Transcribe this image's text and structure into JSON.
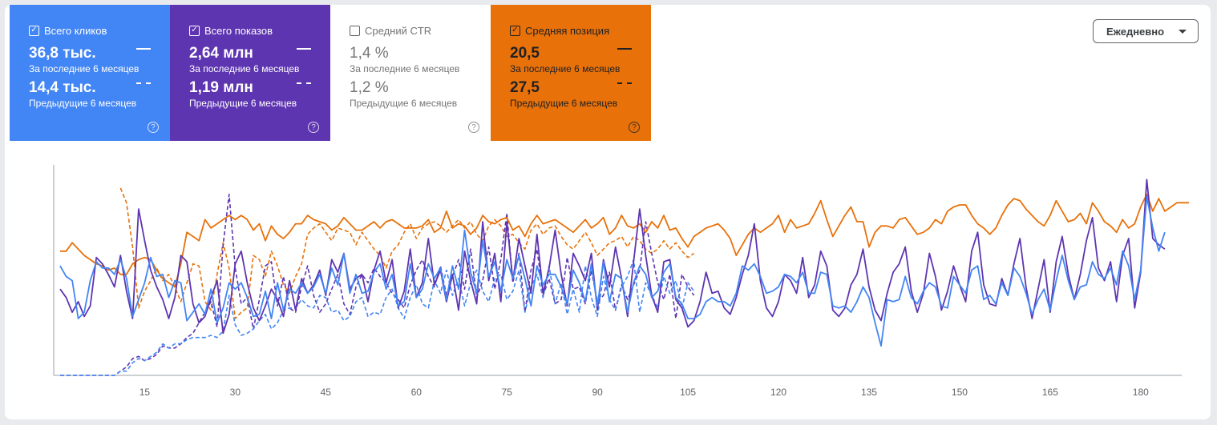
{
  "cards": [
    {
      "label": "Всего кликов",
      "checked": true,
      "current_value": "36,8 тыс.",
      "current_period": "За последние 6 месяцев",
      "previous_value": "14,4 тыс.",
      "previous_period": "Предыдущие 6 месяцев"
    },
    {
      "label": "Всего показов",
      "checked": true,
      "current_value": "2,64 млн",
      "current_period": "За последние 6 месяцев",
      "previous_value": "1,19 млн",
      "previous_period": "Предыдущие 6 месяцев"
    },
    {
      "label": "Средний CTR",
      "checked": false,
      "current_value": "1,4 %",
      "current_period": "За последние 6 месяцев",
      "previous_value": "1,2 %",
      "previous_period": "Предыдущие 6 месяцев"
    },
    {
      "label": "Средняя позиция",
      "checked": true,
      "current_value": "20,5",
      "current_period": "За последние 6 месяцев",
      "previous_value": "27,5",
      "previous_period": "Предыдущие 6 месяцев"
    }
  ],
  "granularity": {
    "selected": "Ежедневно"
  },
  "colors": {
    "clicks": "#4285f4",
    "impressions": "#5e35b1",
    "ctr": "#00897b",
    "position": "#e8710a",
    "axis": "#9aa0a6"
  },
  "icons": {
    "checkbox": "checkbox-icon",
    "help": "help-icon",
    "dropdown": "chevron-down-icon"
  },
  "chart_data": {
    "type": "line",
    "x_ticks": [
      15,
      30,
      45,
      60,
      75,
      90,
      105,
      120,
      135,
      150,
      165,
      180
    ],
    "xlim": [
      1,
      186
    ],
    "ylim": [
      0,
      1
    ],
    "series": [
      {
        "name": "Средняя позиция",
        "period": "current",
        "style": "solid",
        "color": "#e8710a",
        "values": [
          0.59,
          0.59,
          0.63,
          0.6,
          0.57,
          0.55,
          0.53,
          0.52,
          0.5,
          0.51,
          0.48,
          0.48,
          0.53,
          0.55,
          0.56,
          0.55,
          0.5,
          0.46,
          0.44,
          0.42,
          0.53,
          0.68,
          0.66,
          0.64,
          0.74,
          0.7,
          0.72,
          0.74,
          0.76,
          0.74,
          0.76,
          0.74,
          0.69,
          0.72,
          0.64,
          0.71,
          0.67,
          0.65,
          0.68,
          0.72,
          0.72,
          0.76,
          0.74,
          0.73,
          0.72,
          0.69,
          0.71,
          0.75,
          0.72,
          0.69,
          0.69,
          0.71,
          0.73,
          0.7,
          0.73,
          0.74,
          0.72,
          0.7,
          0.7,
          0.7,
          0.71,
          0.74,
          0.68,
          0.7,
          0.78,
          0.7,
          0.72,
          0.71,
          0.67,
          0.7,
          0.76,
          0.73,
          0.72,
          0.74,
          0.75,
          0.69,
          0.71,
          0.66,
          0.72,
          0.76,
          0.72,
          0.73,
          0.74,
          0.72,
          0.7,
          0.68,
          0.71,
          0.74,
          0.7,
          0.72,
          0.75,
          0.67,
          0.7,
          0.76,
          0.71,
          0.7,
          0.72,
          0.68,
          0.73,
          0.7,
          0.76,
          0.69,
          0.7,
          0.65,
          0.61,
          0.66,
          0.68,
          0.7,
          0.71,
          0.72,
          0.69,
          0.65,
          0.57,
          0.62,
          0.67,
          0.7,
          0.68,
          0.7,
          0.72,
          0.76,
          0.68,
          0.74,
          0.7,
          0.71,
          0.72,
          0.77,
          0.83,
          0.74,
          0.66,
          0.71,
          0.76,
          0.8,
          0.73,
          0.73,
          0.61,
          0.68,
          0.71,
          0.71,
          0.7,
          0.74,
          0.75,
          0.71,
          0.67,
          0.68,
          0.7,
          0.74,
          0.72,
          0.78,
          0.8,
          0.81,
          0.81,
          0.76,
          0.72,
          0.7,
          0.67,
          0.7,
          0.76,
          0.81,
          0.84,
          0.83,
          0.79,
          0.76,
          0.73,
          0.71,
          0.76,
          0.83,
          0.78,
          0.73,
          0.74,
          0.77,
          0.72,
          0.82,
          0.78,
          0.73,
          0.71,
          0.68,
          0.74,
          0.7,
          0.72,
          0.8,
          0.86,
          0.78,
          0.84,
          0.78,
          0.8,
          0.82,
          0.82,
          0.82
        ]
      },
      {
        "name": "Всего показов",
        "period": "current",
        "style": "solid",
        "color": "#5e35b1",
        "values": [
          0.41,
          0.37,
          0.3,
          0.35,
          0.28,
          0.33,
          0.56,
          0.53,
          0.48,
          0.42,
          0.57,
          0.4,
          0.27,
          0.79,
          0.64,
          0.5,
          0.42,
          0.36,
          0.27,
          0.37,
          0.57,
          0.54,
          0.34,
          0.25,
          0.28,
          0.37,
          0.45,
          0.2,
          0.29,
          0.53,
          0.59,
          0.44,
          0.32,
          0.26,
          0.33,
          0.41,
          0.36,
          0.28,
          0.45,
          0.31,
          0.46,
          0.39,
          0.43,
          0.5,
          0.38,
          0.55,
          0.49,
          0.58,
          0.41,
          0.46,
          0.48,
          0.35,
          0.5,
          0.59,
          0.44,
          0.55,
          0.32,
          0.4,
          0.6,
          0.37,
          0.44,
          0.65,
          0.43,
          0.5,
          0.35,
          0.48,
          0.31,
          0.59,
          0.45,
          0.34,
          0.73,
          0.45,
          0.58,
          0.35,
          0.73,
          0.45,
          0.65,
          0.52,
          0.39,
          0.67,
          0.39,
          0.51,
          0.69,
          0.48,
          0.33,
          0.58,
          0.52,
          0.45,
          0.58,
          0.31,
          0.55,
          0.42,
          0.61,
          0.46,
          0.28,
          0.54,
          0.79,
          0.57,
          0.38,
          0.3,
          0.54,
          0.55,
          0.36,
          0.32,
          0.23,
          0.26,
          0.35,
          0.49,
          0.39,
          0.4,
          0.32,
          0.29,
          0.37,
          0.48,
          0.57,
          0.72,
          0.45,
          0.32,
          0.28,
          0.35,
          0.48,
          0.45,
          0.39,
          0.56,
          0.37,
          0.43,
          0.59,
          0.52,
          0.31,
          0.28,
          0.32,
          0.43,
          0.48,
          0.6,
          0.42,
          0.31,
          0.26,
          0.39,
          0.49,
          0.53,
          0.61,
          0.4,
          0.3,
          0.39,
          0.58,
          0.47,
          0.31,
          0.4,
          0.52,
          0.43,
          0.35,
          0.59,
          0.68,
          0.43,
          0.34,
          0.33,
          0.46,
          0.38,
          0.53,
          0.65,
          0.42,
          0.27,
          0.41,
          0.55,
          0.3,
          0.54,
          0.66,
          0.48,
          0.36,
          0.48,
          0.64,
          0.75,
          0.51,
          0.45,
          0.54,
          0.35,
          0.57,
          0.65,
          0.32,
          0.49,
          0.93,
          0.65,
          0.62,
          0.6
        ]
      },
      {
        "name": "Всего кликов",
        "period": "current",
        "style": "solid",
        "color": "#4285f4",
        "values": [
          0.52,
          0.47,
          0.45,
          0.27,
          0.3,
          0.45,
          0.54,
          0.51,
          0.51,
          0.48,
          0.55,
          0.46,
          0.28,
          0.36,
          0.44,
          0.56,
          0.47,
          0.48,
          0.37,
          0.45,
          0.44,
          0.26,
          0.3,
          0.34,
          0.29,
          0.41,
          0.25,
          0.32,
          0.44,
          0.41,
          0.44,
          0.37,
          0.28,
          0.29,
          0.4,
          0.27,
          0.44,
          0.31,
          0.41,
          0.39,
          0.44,
          0.39,
          0.42,
          0.48,
          0.39,
          0.51,
          0.43,
          0.58,
          0.39,
          0.48,
          0.39,
          0.4,
          0.49,
          0.53,
          0.41,
          0.48,
          0.33,
          0.35,
          0.53,
          0.37,
          0.41,
          0.53,
          0.46,
          0.51,
          0.36,
          0.52,
          0.41,
          0.69,
          0.49,
          0.39,
          0.64,
          0.47,
          0.54,
          0.4,
          0.55,
          0.46,
          0.57,
          0.46,
          0.33,
          0.52,
          0.43,
          0.48,
          0.48,
          0.42,
          0.34,
          0.5,
          0.44,
          0.35,
          0.53,
          0.33,
          0.54,
          0.35,
          0.48,
          0.46,
          0.3,
          0.44,
          0.52,
          0.48,
          0.37,
          0.4,
          0.49,
          0.53,
          0.37,
          0.34,
          0.27,
          0.27,
          0.29,
          0.35,
          0.37,
          0.35,
          0.35,
          0.33,
          0.39,
          0.52,
          0.5,
          0.53,
          0.47,
          0.39,
          0.4,
          0.42,
          0.48,
          0.47,
          0.44,
          0.49,
          0.39,
          0.39,
          0.49,
          0.48,
          0.33,
          0.32,
          0.33,
          0.3,
          0.35,
          0.42,
          0.37,
          0.25,
          0.14,
          0.36,
          0.35,
          0.36,
          0.47,
          0.37,
          0.34,
          0.4,
          0.44,
          0.42,
          0.33,
          0.32,
          0.47,
          0.43,
          0.39,
          0.5,
          0.52,
          0.36,
          0.38,
          0.34,
          0.44,
          0.38,
          0.51,
          0.47,
          0.39,
          0.29,
          0.36,
          0.41,
          0.31,
          0.45,
          0.57,
          0.45,
          0.36,
          0.42,
          0.43,
          0.54,
          0.48,
          0.46,
          0.51,
          0.43,
          0.59,
          0.52,
          0.36,
          0.5,
          0.85,
          0.7,
          0.59,
          0.68
        ]
      },
      {
        "name": "Средняя позиция",
        "period": "previous",
        "style": "dashed",
        "color": "#e8710a",
        "values": [
          null,
          null,
          null,
          null,
          null,
          null,
          null,
          null,
          null,
          null,
          0.89,
          0.82,
          0.61,
          0.32,
          0.4,
          0.45,
          0.51,
          0.45,
          0.48,
          0.42,
          0.35,
          0.44,
          0.53,
          0.52,
          0.35,
          0.31,
          0.48,
          0.63,
          0.51,
          0.27,
          0.3,
          0.32,
          0.57,
          0.55,
          0.47,
          0.59,
          0.52,
          0.43,
          0.39,
          0.47,
          0.53,
          0.67,
          0.7,
          0.72,
          0.68,
          0.64,
          0.7,
          0.69,
          0.68,
          0.62,
          0.68,
          0.64,
          0.6,
          0.57,
          0.51,
          0.59,
          0.62,
          0.68,
          0.72,
          0.65,
          0.7,
          0.72,
          0.73,
          0.71,
          0.68,
          0.71,
          0.74,
          0.7,
          0.73,
          0.67,
          0.64,
          0.71,
          0.74,
          0.71,
          0.66,
          0.67,
          0.63,
          0.6,
          0.69,
          0.72,
          0.67,
          0.7,
          0.71,
          0.66,
          0.62,
          0.6,
          0.64,
          0.68,
          0.63,
          0.57,
          0.6,
          0.63,
          0.64,
          0.66,
          0.61,
          0.66,
          0.64,
          0.6,
          0.58,
          0.6,
          0.64,
          0.6,
          0.63,
          0.59,
          0.56,
          0.58
        ]
      },
      {
        "name": "Всего показов",
        "period": "previous",
        "style": "dashed",
        "color": "#5e35b1",
        "values": [
          0,
          0,
          0,
          0,
          0,
          0,
          0,
          0,
          0,
          0,
          0.02,
          0.04,
          0.08,
          0.09,
          0.07,
          0.08,
          0.1,
          0.14,
          0.13,
          0.13,
          0.15,
          0.18,
          0.2,
          0.25,
          0.3,
          0.35,
          0.23,
          0.62,
          0.86,
          0.51,
          0.34,
          0.37,
          0.22,
          0.36,
          0.52,
          0.54,
          0.33,
          0.47,
          0.32,
          0.3,
          0.42,
          0.52,
          0.38,
          0.3,
          0.34,
          0.41,
          0.48,
          0.34,
          0.29,
          0.42,
          0.48,
          0.44,
          0.51,
          0.47,
          0.44,
          0.39,
          0.36,
          0.32,
          0.43,
          0.5,
          0.55,
          0.47,
          0.42,
          0.52,
          0.38,
          0.47,
          0.55,
          0.41,
          0.6,
          0.37,
          0.45,
          0.61,
          0.41,
          0.55,
          0.77,
          0.44,
          0.58,
          0.3,
          0.5,
          0.6,
          0.38,
          0.46,
          0.34,
          0.36,
          0.56,
          0.41,
          0.42,
          0.34,
          0.5,
          0.35,
          0.38,
          0.49,
          0.31,
          0.43,
          0.36,
          0.43,
          0.5,
          0.73,
          0.58,
          0.44,
          0.36,
          0.48,
          0.27,
          0.48,
          0.42,
          0.38
        ]
      },
      {
        "name": "Всего кликов",
        "period": "previous",
        "style": "dashed",
        "color": "#4285f4",
        "values": [
          0,
          0,
          0,
          0,
          0,
          0,
          0,
          0,
          0,
          0,
          0.02,
          0.02,
          0.06,
          0.08,
          0.07,
          0.09,
          0.11,
          0.15,
          0.13,
          0.15,
          0.15,
          0.17,
          0.18,
          0.18,
          0.18,
          0.19,
          0.18,
          0.21,
          0.38,
          0.24,
          0.19,
          0.2,
          0.22,
          0.26,
          0.29,
          0.22,
          0.25,
          0.31,
          0.32,
          0.32,
          0.36,
          0.33,
          0.32,
          0.38,
          0.37,
          0.3,
          0.31,
          0.26,
          0.28,
          0.35,
          0.37,
          0.28,
          0.3,
          0.29,
          0.37,
          0.41,
          0.32,
          0.27,
          0.37,
          0.43,
          0.34,
          0.32,
          0.45,
          0.39,
          0.5,
          0.38,
          0.46,
          0.33,
          0.44,
          0.5,
          0.4,
          0.35,
          0.46,
          0.48,
          0.36,
          0.4,
          0.5,
          0.3,
          0.42,
          0.48,
          0.37,
          0.52,
          0.34,
          0.44,
          0.29,
          0.41,
          0.3,
          0.52,
          0.37,
          0.28,
          0.47,
          0.36,
          0.31,
          0.42,
          0.47,
          0.55,
          0.3,
          0.44,
          0.38,
          0.32,
          0.47,
          0.39,
          0.45,
          0.32,
          0.44,
          0.4
        ]
      }
    ]
  }
}
